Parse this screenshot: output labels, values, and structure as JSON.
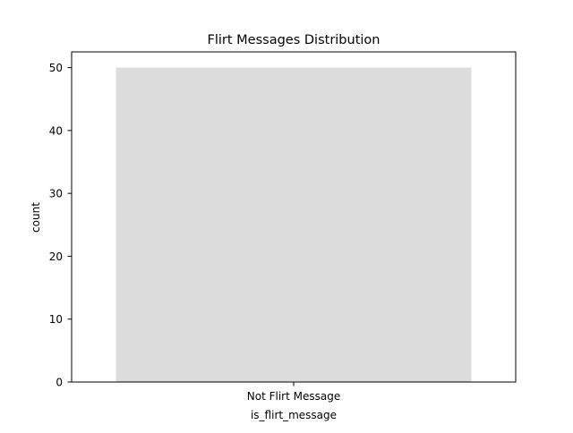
{
  "chart_data": {
    "type": "bar",
    "title": "Flirt Messages Distribution",
    "xlabel": "is_flirt_message",
    "ylabel": "count",
    "categories": [
      "Not Flirt Message"
    ],
    "values": [
      50
    ],
    "ylim": [
      0,
      52.5
    ],
    "yticks": [
      0,
      10,
      20,
      30,
      40,
      50
    ],
    "bar_color": "#dcdcdc",
    "grid": false,
    "legend": "none"
  }
}
